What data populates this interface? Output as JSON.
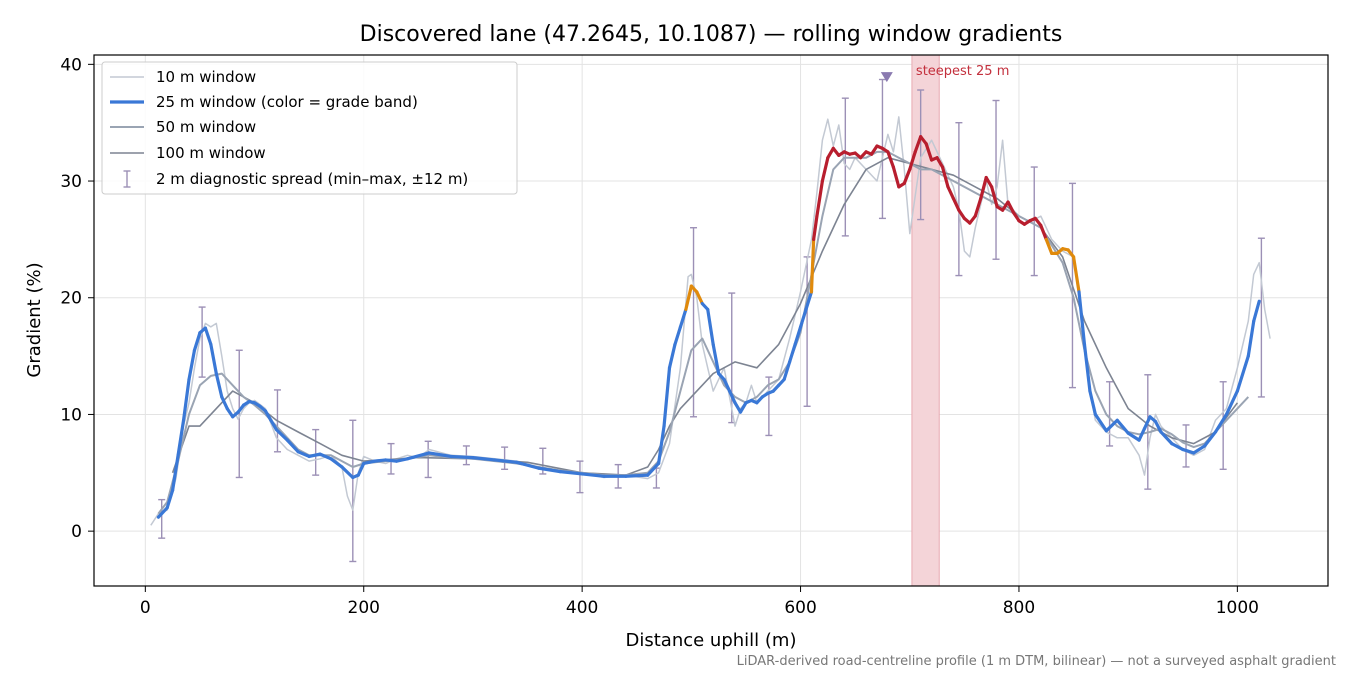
{
  "chart_data": {
    "type": "line",
    "title": "Discovered lane (47.2645, 10.1087) — rolling window gradients",
    "xlabel": "Distance uphill (m)",
    "ylabel": "Gradient (%)",
    "footnote": "LiDAR-derived road-centreline profile (1 m DTM, bilinear) — not a surveyed asphalt gradient",
    "xlim": [
      -47,
      1083
    ],
    "ylim": [
      -4.7,
      40.8
    ],
    "xticks": [
      0,
      200,
      400,
      600,
      800,
      1000
    ],
    "yticks": [
      0,
      10,
      20,
      30,
      40
    ],
    "xtick_labels": [
      "0",
      "200",
      "400",
      "600",
      "800",
      "1000"
    ],
    "ytick_labels": [
      "0",
      "10",
      "20",
      "30",
      "40"
    ],
    "grid": true,
    "legend_position": "top-left",
    "legend": [
      "10 m window",
      "25 m window (color = grade band)",
      "50 m window",
      "100 m window",
      "2 m diagnostic spread (min–max, ±12 m)"
    ],
    "steepest": {
      "x_range": [
        702,
        727
      ],
      "label": "steepest 25 m",
      "marker_x": 679,
      "marker_y": 38.9
    },
    "colors": {
      "w10": "#c3c9d3",
      "w25_low": "#3a78d6",
      "w25_mid": "#e08a0c",
      "w25_high": "#b81e2e",
      "w50": "#9aa4b3",
      "w100": "#7d8492",
      "errorbar": "#9c90b6",
      "highlight": "#f4d4d8",
      "annotation": "#c3303d"
    },
    "grade_bands": {
      "mid_min": 20,
      "high_min": 25
    },
    "series": [
      {
        "name": "10 m window",
        "x": [
          5,
          12,
          20,
          28,
          35,
          40,
          45,
          50,
          55,
          60,
          65,
          70,
          75,
          80,
          85,
          90,
          95,
          100,
          110,
          120,
          130,
          140,
          150,
          160,
          170,
          180,
          185,
          190,
          195,
          200,
          210,
          220,
          230,
          240,
          250,
          260,
          280,
          300,
          320,
          340,
          360,
          380,
          400,
          420,
          440,
          460,
          470,
          480,
          490,
          497,
          500,
          505,
          510,
          515,
          520,
          530,
          540,
          545,
          550,
          555,
          560,
          570,
          580,
          590,
          600,
          610,
          615,
          620,
          625,
          630,
          635,
          640,
          645,
          650,
          660,
          670,
          675,
          680,
          685,
          690,
          695,
          700,
          710,
          720,
          730,
          740,
          745,
          750,
          755,
          760,
          770,
          775,
          780,
          785,
          790,
          800,
          810,
          820,
          830,
          840,
          850,
          855,
          860,
          865,
          870,
          880,
          890,
          900,
          910,
          915,
          920,
          925,
          930,
          940,
          950,
          960,
          970,
          980,
          990,
          1000,
          1010,
          1015,
          1020,
          1025,
          1030
        ],
        "y": [
          0.5,
          1.5,
          1.8,
          4.5,
          9.0,
          11.0,
          14.0,
          16.5,
          17.8,
          17.5,
          17.8,
          15.0,
          12.0,
          10.5,
          9.6,
          10.5,
          11.0,
          11.2,
          10.5,
          8.0,
          7.0,
          6.5,
          6.0,
          6.2,
          6.5,
          5.5,
          3.0,
          1.8,
          5.0,
          6.4,
          6.0,
          5.8,
          6.2,
          6.5,
          6.3,
          7.0,
          6.5,
          6.4,
          6.2,
          6.0,
          5.5,
          5.2,
          5.0,
          4.6,
          4.8,
          4.5,
          5.0,
          7.5,
          14.0,
          21.8,
          22.0,
          20.0,
          16.0,
          14.0,
          12.0,
          14.0,
          9.0,
          10.5,
          11.0,
          12.5,
          11.0,
          12.0,
          13.0,
          16.5,
          20.5,
          25.0,
          29.0,
          33.5,
          35.3,
          33.0,
          34.8,
          31.5,
          31.0,
          32.0,
          31.0,
          30.0,
          32.0,
          34.0,
          32.5,
          35.5,
          31.0,
          25.5,
          32.0,
          33.5,
          31.5,
          29.5,
          27.5,
          24.0,
          23.5,
          26.0,
          30.0,
          28.0,
          29.5,
          33.5,
          28.0,
          27.0,
          26.5,
          27.0,
          25.0,
          24.0,
          23.5,
          20.0,
          15.5,
          12.0,
          9.5,
          8.5,
          8.0,
          8.0,
          6.5,
          4.8,
          8.0,
          10.0,
          9.0,
          8.0,
          7.0,
          6.5,
          7.0,
          9.5,
          10.5,
          14.0,
          18.0,
          22.0,
          23.0,
          19.0,
          16.5
        ]
      },
      {
        "name": "25 m window (color = grade band)",
        "x": [
          12,
          20,
          25,
          30,
          35,
          40,
          45,
          50,
          55,
          60,
          65,
          70,
          75,
          80,
          85,
          90,
          95,
          100,
          105,
          110,
          115,
          120,
          130,
          140,
          150,
          160,
          170,
          180,
          190,
          195,
          200,
          210,
          220,
          230,
          240,
          260,
          280,
          300,
          320,
          340,
          360,
          380,
          400,
          420,
          440,
          460,
          470,
          475,
          480,
          485,
          490,
          495,
          500,
          505,
          510,
          515,
          520,
          525,
          530,
          535,
          540,
          545,
          550,
          555,
          560,
          565,
          570,
          575,
          580,
          585,
          590,
          595,
          600,
          605,
          610,
          612,
          615,
          620,
          625,
          630,
          635,
          640,
          645,
          650,
          655,
          660,
          665,
          670,
          675,
          680,
          685,
          690,
          695,
          700,
          705,
          710,
          715,
          720,
          725,
          730,
          735,
          740,
          745,
          750,
          755,
          760,
          765,
          770,
          775,
          780,
          785,
          790,
          795,
          800,
          805,
          810,
          815,
          820,
          825,
          830,
          835,
          840,
          845,
          850,
          855,
          860,
          865,
          870,
          880,
          890,
          900,
          910,
          915,
          920,
          925,
          930,
          940,
          950,
          960,
          970,
          980,
          990,
          1000,
          1010,
          1015,
          1020
        ],
        "y": [
          1.2,
          2.0,
          3.5,
          6.5,
          9.5,
          13.0,
          15.5,
          17.0,
          17.4,
          16.0,
          13.5,
          11.5,
          10.5,
          9.8,
          10.2,
          10.8,
          11.1,
          11.0,
          10.7,
          10.3,
          9.5,
          8.7,
          7.8,
          6.8,
          6.4,
          6.6,
          6.2,
          5.5,
          4.6,
          4.8,
          5.8,
          6.0,
          6.1,
          6.0,
          6.2,
          6.7,
          6.4,
          6.3,
          6.1,
          5.9,
          5.4,
          5.1,
          4.9,
          4.7,
          4.7,
          4.8,
          5.8,
          9.0,
          14.0,
          16.0,
          17.5,
          19.0,
          21.0,
          20.5,
          19.5,
          19.0,
          16.0,
          13.5,
          13.0,
          12.0,
          11.0,
          10.2,
          11.0,
          11.2,
          11.0,
          11.5,
          11.8,
          12.0,
          12.5,
          13.0,
          14.5,
          16.0,
          17.5,
          19.0,
          20.5,
          25.0,
          27.0,
          30.0,
          32.0,
          32.8,
          32.2,
          32.5,
          32.3,
          32.4,
          32.0,
          32.5,
          32.3,
          33.0,
          32.8,
          32.5,
          31.2,
          29.5,
          29.8,
          31.0,
          32.5,
          33.8,
          33.2,
          31.8,
          32.0,
          31.2,
          29.5,
          28.5,
          27.5,
          26.8,
          26.4,
          27.0,
          28.5,
          30.3,
          29.5,
          27.8,
          27.5,
          28.2,
          27.3,
          26.6,
          26.3,
          26.6,
          26.8,
          26.2,
          25.0,
          23.8,
          23.8,
          24.2,
          24.1,
          23.5,
          20.5,
          16.0,
          12.0,
          10.0,
          8.6,
          9.5,
          8.4,
          7.8,
          8.8,
          9.8,
          9.4,
          8.5,
          7.5,
          7.0,
          6.7,
          7.3,
          8.5,
          10.0,
          12.0,
          15.0,
          18.0,
          19.7
        ]
      },
      {
        "name": "50 m window",
        "x": [
          12,
          20,
          30,
          40,
          50,
          60,
          70,
          80,
          90,
          100,
          110,
          120,
          130,
          140,
          150,
          160,
          170,
          180,
          190,
          200,
          220,
          240,
          260,
          280,
          300,
          320,
          340,
          360,
          380,
          400,
          420,
          440,
          460,
          470,
          480,
          490,
          500,
          510,
          520,
          530,
          540,
          550,
          560,
          570,
          580,
          590,
          600,
          610,
          620,
          630,
          640,
          650,
          660,
          670,
          680,
          690,
          700,
          710,
          720,
          730,
          740,
          750,
          760,
          770,
          780,
          790,
          800,
          810,
          820,
          830,
          840,
          850,
          860,
          870,
          880,
          890,
          900,
          910,
          920,
          930,
          940,
          950,
          960,
          970,
          980,
          990,
          1000,
          1010
        ],
        "y": [
          1.5,
          2.5,
          6.0,
          10.0,
          12.5,
          13.3,
          13.5,
          12.5,
          11.5,
          10.8,
          10.0,
          9.0,
          8.0,
          7.0,
          6.5,
          6.5,
          6.5,
          6.0,
          5.5,
          5.8,
          6.0,
          6.2,
          6.5,
          6.3,
          6.2,
          6.0,
          5.8,
          5.5,
          5.2,
          5.0,
          4.8,
          4.8,
          5.0,
          6.0,
          8.5,
          12.0,
          15.5,
          16.5,
          14.5,
          12.5,
          11.5,
          11.0,
          11.5,
          12.5,
          13.0,
          14.5,
          17.0,
          22.0,
          27.0,
          31.0,
          32.0,
          32.0,
          32.0,
          32.5,
          32.5,
          32.0,
          31.5,
          31.0,
          31.0,
          30.5,
          30.0,
          29.5,
          29.0,
          28.5,
          28.0,
          27.5,
          27.0,
          26.5,
          26.0,
          24.5,
          23.0,
          20.0,
          15.5,
          12.0,
          10.0,
          9.0,
          8.5,
          8.3,
          8.5,
          8.8,
          8.3,
          7.6,
          7.2,
          7.5,
          8.5,
          9.5,
          10.5,
          11.5
        ]
      },
      {
        "name": "100 m window",
        "x": [
          25,
          40,
          50,
          60,
          80,
          100,
          120,
          140,
          160,
          180,
          200,
          250,
          300,
          350,
          400,
          440,
          460,
          470,
          480,
          490,
          500,
          520,
          540,
          560,
          580,
          600,
          620,
          640,
          660,
          680,
          700,
          720,
          740,
          760,
          780,
          800,
          820,
          840,
          860,
          880,
          900,
          920,
          940,
          960,
          980,
          1000
        ],
        "y": [
          5.0,
          9.0,
          9.0,
          10.0,
          12.0,
          11.0,
          9.5,
          8.5,
          7.5,
          6.5,
          6.0,
          6.3,
          6.2,
          5.9,
          5.0,
          4.8,
          5.5,
          7.0,
          9.0,
          10.5,
          11.5,
          13.5,
          14.5,
          14.0,
          16.0,
          19.5,
          24.0,
          28.0,
          31.0,
          32.0,
          31.5,
          31.0,
          30.5,
          29.5,
          28.5,
          27.0,
          26.0,
          23.5,
          18.0,
          14.0,
          10.5,
          9.0,
          8.0,
          7.5,
          8.5,
          11.0
        ]
      }
    ],
    "error_bars": [
      {
        "x": 15,
        "low": -0.6,
        "high": 2.7
      },
      {
        "x": 52,
        "low": 13.2,
        "high": 19.2
      },
      {
        "x": 86,
        "low": 4.6,
        "high": 15.5
      },
      {
        "x": 121,
        "low": 6.8,
        "high": 12.1
      },
      {
        "x": 156,
        "low": 4.8,
        "high": 8.7
      },
      {
        "x": 190,
        "low": -2.6,
        "high": 9.5
      },
      {
        "x": 225,
        "low": 4.9,
        "high": 7.5
      },
      {
        "x": 259,
        "low": 4.6,
        "high": 7.7
      },
      {
        "x": 294,
        "low": 5.7,
        "high": 7.3
      },
      {
        "x": 329,
        "low": 5.3,
        "high": 7.2
      },
      {
        "x": 364,
        "low": 4.9,
        "high": 7.1
      },
      {
        "x": 398,
        "low": 3.3,
        "high": 6.0
      },
      {
        "x": 433,
        "low": 3.7,
        "high": 5.7
      },
      {
        "x": 468,
        "low": 3.7,
        "high": 5.4
      },
      {
        "x": 502,
        "low": 9.8,
        "high": 26.0
      },
      {
        "x": 537,
        "low": 9.3,
        "high": 20.4
      },
      {
        "x": 571,
        "low": 8.2,
        "high": 13.2
      },
      {
        "x": 606,
        "low": 10.7,
        "high": 23.5
      },
      {
        "x": 641,
        "low": 25.3,
        "high": 37.1
      },
      {
        "x": 675,
        "low": 26.8,
        "high": 38.7
      },
      {
        "x": 710,
        "low": 26.7,
        "high": 37.8
      },
      {
        "x": 745,
        "low": 21.9,
        "high": 35.0
      },
      {
        "x": 779,
        "low": 23.3,
        "high": 36.9
      },
      {
        "x": 814,
        "low": 21.9,
        "high": 31.2
      },
      {
        "x": 849,
        "low": 12.3,
        "high": 29.8
      },
      {
        "x": 883,
        "low": 7.3,
        "high": 12.8
      },
      {
        "x": 918,
        "low": 3.6,
        "high": 13.4
      },
      {
        "x": 953,
        "low": 5.5,
        "high": 9.1
      },
      {
        "x": 987,
        "low": 5.3,
        "high": 12.8
      },
      {
        "x": 1022,
        "low": 11.5,
        "high": 25.1
      }
    ]
  }
}
